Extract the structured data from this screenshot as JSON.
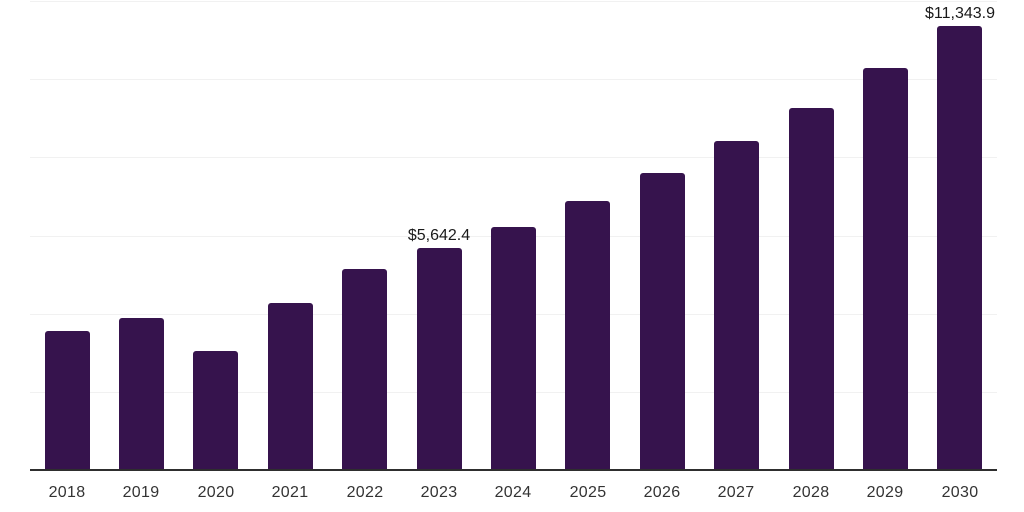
{
  "chart_data": {
    "type": "bar",
    "title": "",
    "xlabel": "",
    "ylabel": "",
    "categories": [
      "2018",
      "2019",
      "2020",
      "2021",
      "2022",
      "2023",
      "2024",
      "2025",
      "2026",
      "2027",
      "2028",
      "2029",
      "2030"
    ],
    "values": [
      3520,
      3860,
      3030,
      4250,
      5120,
      5642.4,
      6200,
      6850,
      7570,
      8380,
      9240,
      10250,
      11343.9
    ],
    "data_labels": {
      "2023": "$5,642.4",
      "2030": "$11,343.9"
    },
    "ylim": [
      0,
      12000
    ],
    "gridline_step": 2000,
    "grid": true,
    "legend_position": "none",
    "y_tick_labels_visible": false,
    "bar_color": "#36134D",
    "axis_color": "#2e2e2e",
    "gridline_color": "#f1f1f1",
    "tick_label_color": "#333333",
    "value_label_color": "#1a1a1a",
    "background_color": "#ffffff"
  }
}
